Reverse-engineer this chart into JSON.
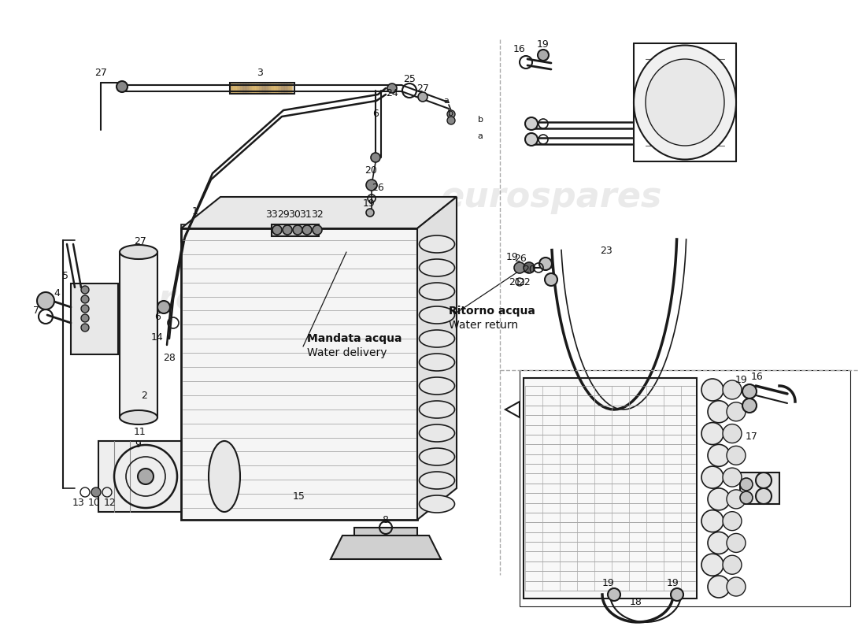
{
  "bg_color": "#ffffff",
  "line_color": "#1a1a1a",
  "watermark_color": "#bbbbbb",
  "watermark_alpha": 0.3,
  "label_color": "#111111",
  "annotation_texts": {
    "water_delivery_it": "Mandata acqua",
    "water_delivery_en": "Water delivery",
    "water_return_it": "Ritorno acqua",
    "water_return_en": "Water return"
  }
}
